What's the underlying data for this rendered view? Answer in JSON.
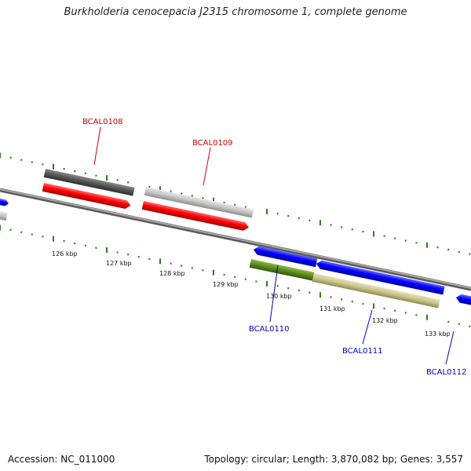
{
  "title": "Burkholderia cenocepacia J2315 chromosome 1, complete genome",
  "footer": {
    "accession": "Accession: NC_011000",
    "topology": "Topology: circular; Length: 3,870,082 bp; Genes: 3,557"
  },
  "colors": {
    "backbone": "#8a8a8a",
    "ticks": "#2e7d1e",
    "label_red": "#cc0000",
    "label_blue": "#0000cc",
    "cds_red": "#ff0000",
    "cds_blue": "#0000ff",
    "gene_dark": "#555555",
    "gene_light": "#c4c4c4",
    "olive_dark": "#5a8a1a",
    "olive_light": "#c9c48a"
  },
  "scale_labels": [
    "126 kbp",
    "127 kbp",
    "128 kbp",
    "129 kbp",
    "130 kbp",
    "131 kbp",
    "132 kbp",
    "133 kbp"
  ],
  "gene_labels": [
    {
      "name": "BCAL0108",
      "color": "red"
    },
    {
      "name": "BCAL0109",
      "color": "red"
    },
    {
      "name": "BCAL0110",
      "color": "blue"
    },
    {
      "name": "BCAL0111",
      "color": "blue"
    },
    {
      "name": "BCAL0112",
      "color": "blue"
    }
  ]
}
